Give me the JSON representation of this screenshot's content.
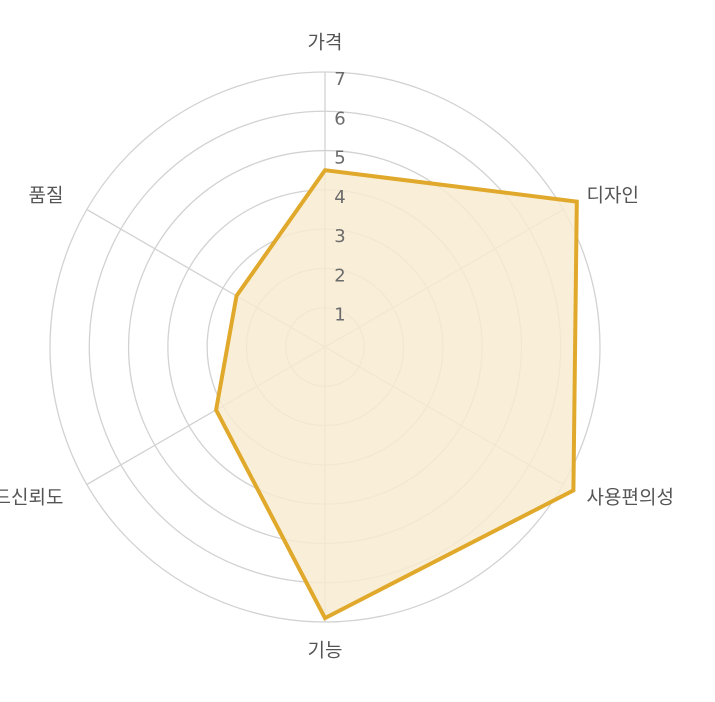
{
  "chart_data": {
    "type": "radar",
    "axes": [
      "가격",
      "디자인",
      "사용편의성",
      "기능",
      "브랜드신뢰도",
      "품질"
    ],
    "series": [
      {
        "values": [
          4.5,
          7.4,
          7.3,
          6.9,
          3.2,
          2.6
        ]
      }
    ],
    "rlim": [
      0,
      7
    ],
    "rticks": [
      "1",
      "2",
      "3",
      "4",
      "5",
      "6",
      "7"
    ],
    "grid": true,
    "colors": {
      "series_line": "#e0a92b",
      "series_fill": "#f8ecd2",
      "grid": "#d2d2d2",
      "text": "#555555"
    }
  }
}
